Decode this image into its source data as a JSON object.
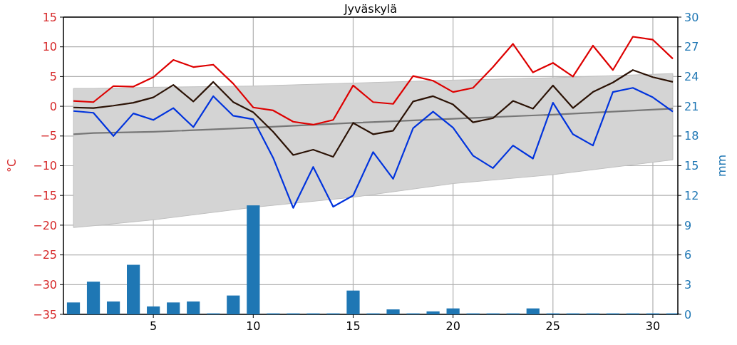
{
  "chart_data": {
    "type": "line",
    "title": "Jyväskylä",
    "ylabel": "°C",
    "y2label": "mm",
    "x": [
      1,
      2,
      3,
      4,
      5,
      6,
      7,
      8,
      9,
      10,
      11,
      12,
      13,
      14,
      15,
      16,
      17,
      18,
      19,
      20,
      21,
      22,
      23,
      24,
      25,
      26,
      27,
      28,
      29,
      30,
      31
    ],
    "xlim": [
      0.5,
      31.25
    ],
    "xticks": [
      5,
      10,
      15,
      20,
      25,
      30
    ],
    "ylim": [
      -35,
      15
    ],
    "yticks": [
      {
        "value": -35,
        "label": "−35"
      },
      {
        "value": -30,
        "label": "−30"
      },
      {
        "value": -25,
        "label": "−25"
      },
      {
        "value": -20,
        "label": "−20"
      },
      {
        "value": -15,
        "label": "−15"
      },
      {
        "value": -10,
        "label": "−10"
      },
      {
        "value": -5,
        "label": "−5"
      },
      0,
      5,
      10,
      15
    ],
    "y2lim": [
      0,
      30
    ],
    "y2ticks": [
      0,
      3,
      6,
      9,
      12,
      15,
      18,
      21,
      24,
      27,
      30
    ],
    "grid": true,
    "series": [
      {
        "color": "#777777",
        "x": [
          1,
          2,
          5,
          10,
          15,
          20,
          25,
          31
        ],
        "values": [
          -4.7,
          -4.5,
          -4.3,
          -3.6,
          -2.8,
          -2.1,
          -1.4,
          -0.4
        ],
        "lower": [
          -20.4,
          -20.1,
          -19.1,
          -17.0,
          -15.3,
          -13.0,
          -11.5,
          -9.0
        ],
        "upper": [
          3.0,
          3.0,
          3.2,
          3.4,
          3.9,
          4.4,
          4.8,
          5.5
        ]
      },
      {
        "type": "bar",
        "axis": "y2",
        "color": "#1f77b4",
        "values": [
          1.2,
          3.3,
          1.3,
          5.0,
          0.8,
          1.2,
          1.3,
          0.1,
          1.9,
          11.0,
          0.1,
          0.1,
          0.1,
          0.1,
          2.4,
          0.1,
          0.5,
          0.1,
          0.3,
          0.6,
          0.1,
          0.1,
          0.1,
          0.6,
          0.1,
          0.1,
          0.1,
          0.1,
          0.1,
          0.1,
          0.1
        ]
      },
      {
        "color": "#dd0000",
        "values": [
          0.9,
          0.7,
          3.4,
          3.3,
          4.9,
          7.8,
          6.6,
          7.0,
          3.8,
          -0.2,
          -0.7,
          -2.6,
          -3.1,
          -2.3,
          3.5,
          0.7,
          0.4,
          5.1,
          4.3,
          2.4,
          3.1,
          6.6,
          10.5,
          5.7,
          7.3,
          5.0,
          10.2,
          6.1,
          11.7,
          11.2,
          8.0
        ]
      },
      {
        "color": "#2b1205",
        "values": [
          -0.2,
          -0.3,
          0.1,
          0.6,
          1.5,
          3.6,
          0.8,
          4.1,
          0.7,
          -1.0,
          -4.3,
          -8.2,
          -7.3,
          -8.5,
          -2.8,
          -4.7,
          -4.1,
          0.8,
          1.7,
          0.3,
          -2.7,
          -2.0,
          0.9,
          -0.4,
          3.5,
          -0.3,
          2.4,
          4.0,
          6.1,
          4.9,
          4.1
        ]
      },
      {
        "color": "#0033dd",
        "values": [
          -0.8,
          -1.1,
          -5.0,
          -1.2,
          -2.3,
          -0.3,
          -3.5,
          1.7,
          -1.6,
          -2.2,
          -8.7,
          -17.1,
          -10.2,
          -16.9,
          -15.0,
          -7.7,
          -12.2,
          -3.7,
          -0.9,
          -3.6,
          -8.3,
          -10.4,
          -6.6,
          -8.8,
          0.6,
          -4.7,
          -6.6,
          2.4,
          3.1,
          1.5,
          -0.9
        ]
      }
    ]
  }
}
